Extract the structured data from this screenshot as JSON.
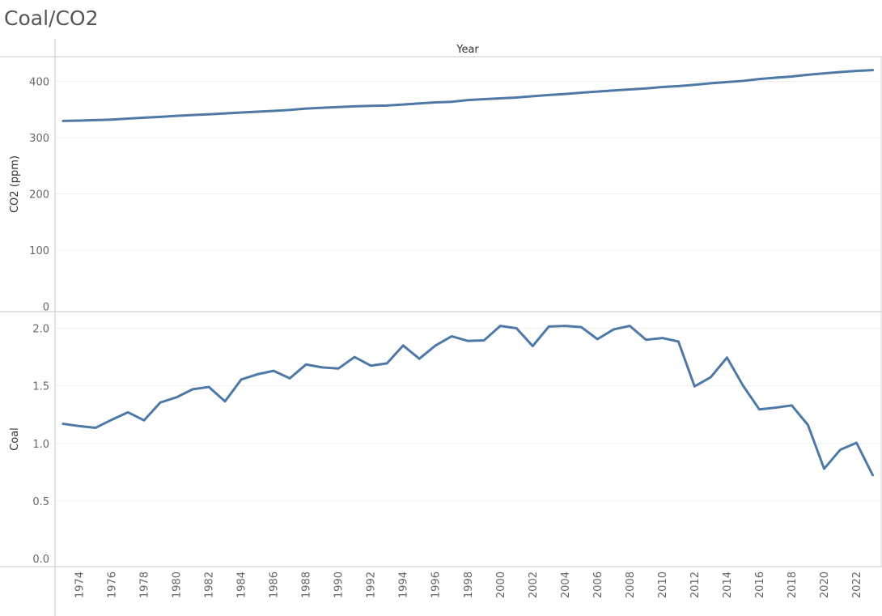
{
  "title": "Coal/CO2",
  "chart_data": {
    "type": "line",
    "x_title": "Year",
    "x": [
      1973,
      1974,
      1975,
      1976,
      1977,
      1978,
      1979,
      1980,
      1981,
      1982,
      1983,
      1984,
      1985,
      1986,
      1987,
      1988,
      1989,
      1990,
      1991,
      1992,
      1993,
      1994,
      1995,
      1996,
      1997,
      1998,
      1999,
      2000,
      2001,
      2002,
      2003,
      2004,
      2005,
      2006,
      2007,
      2008,
      2009,
      2010,
      2011,
      2012,
      2013,
      2014,
      2015,
      2016,
      2017,
      2018,
      2019,
      2020,
      2021,
      2022,
      2023
    ],
    "x_tick_labels": [
      "1974",
      "1976",
      "1978",
      "1980",
      "1982",
      "1984",
      "1986",
      "1988",
      "1990",
      "1992",
      "1994",
      "1996",
      "1998",
      "2000",
      "2002",
      "2004",
      "2006",
      "2008",
      "2010",
      "2012",
      "2014",
      "2016",
      "2018",
      "2020",
      "2022"
    ],
    "line_color": "#4e79a7",
    "panels": [
      {
        "ylabel": "CO2 (ppm)",
        "ylim": [
          0,
          440
        ],
        "yticks": [
          0,
          100,
          200,
          300,
          400
        ],
        "y_tick_labels": [
          "0",
          "100",
          "200",
          "300",
          "400"
        ],
        "values": [
          329.7,
          330.2,
          331.1,
          332.0,
          333.8,
          335.4,
          336.8,
          338.7,
          340.1,
          341.4,
          343.0,
          344.6,
          346.0,
          347.4,
          349.2,
          351.6,
          353.1,
          354.4,
          355.6,
          356.5,
          357.1,
          358.8,
          360.8,
          362.6,
          363.7,
          366.7,
          368.4,
          369.7,
          371.3,
          373.5,
          375.8,
          377.5,
          379.8,
          381.9,
          383.8,
          385.6,
          387.4,
          389.9,
          391.6,
          393.9,
          396.5,
          398.7,
          400.8,
          404.2,
          406.5,
          408.7,
          411.7,
          414.2,
          416.5,
          418.6,
          420.0
        ]
      },
      {
        "ylabel": "Coal",
        "ylim": [
          0,
          2.1
        ],
        "yticks": [
          0,
          0.5,
          1.0,
          1.5,
          2.0
        ],
        "y_tick_labels": [
          "0.0",
          "0.5",
          "1.0",
          "1.5",
          "2.0"
        ],
        "values": [
          1.17,
          1.15,
          1.135,
          1.205,
          1.27,
          1.2,
          1.355,
          1.4,
          1.47,
          1.49,
          1.365,
          1.555,
          1.6,
          1.63,
          1.565,
          1.685,
          1.66,
          1.65,
          1.75,
          1.675,
          1.695,
          1.85,
          1.735,
          1.85,
          1.93,
          1.89,
          1.895,
          2.02,
          2.0,
          1.845,
          2.015,
          2.02,
          2.01,
          1.905,
          1.99,
          2.02,
          1.9,
          1.915,
          1.885,
          1.495,
          1.575,
          1.745,
          1.5,
          1.295,
          1.31,
          1.33,
          1.16,
          0.78,
          0.945,
          1.005,
          0.725
        ]
      }
    ]
  }
}
